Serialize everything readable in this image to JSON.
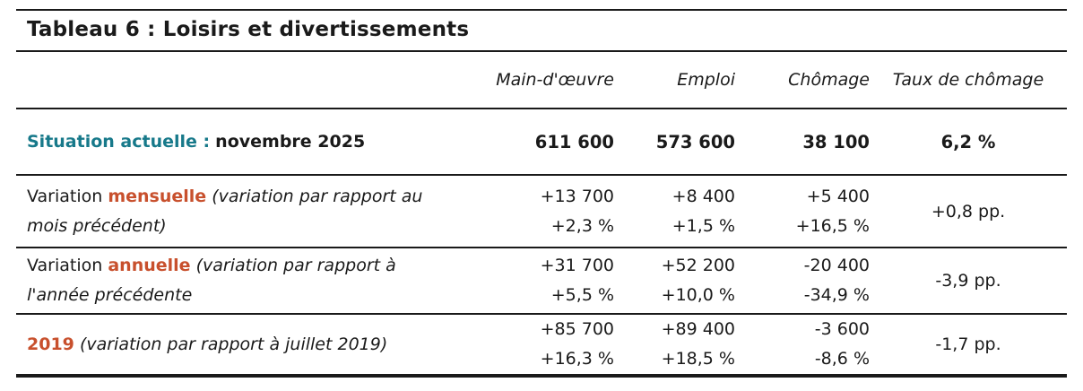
{
  "title": "Tableau 6 : Loisirs et divertissements",
  "colors": {
    "accent_teal": "#17798a",
    "accent_orange": "#c8502d",
    "text": "#1a1a1a",
    "rule": "#1a1a1a"
  },
  "header": {
    "columns": [
      "Main-d'œuvre",
      "Emploi",
      "Chômage",
      "Taux de chômage"
    ]
  },
  "rows": [
    {
      "label_accent": "Situation actuelle :",
      "label_rest": "novembre 2025",
      "values": [
        "611 600",
        "573 600",
        "38 100"
      ],
      "rate": "6,2 %"
    },
    {
      "label_lead": "Variation",
      "label_accent": "mensuelle",
      "label_note": "(variation par rapport au mois précédent)",
      "abs": [
        "+13 700",
        "+8 400",
        "+5 400"
      ],
      "pct": [
        "+2,3 %",
        "+1,5 %",
        "+16,5 %"
      ],
      "rate": "+0,8 pp."
    },
    {
      "label_lead": "Variation",
      "label_accent": "annuelle",
      "label_note": "(variation par rapport à l'année précédente",
      "abs": [
        "+31 700",
        "+52 200",
        "-20 400"
      ],
      "pct": [
        "+5,5 %",
        "+10,0 %",
        "-34,9 %"
      ],
      "rate": "-3,9 pp."
    },
    {
      "label_accent": "2019",
      "label_note": "(variation par rapport à juillet 2019)",
      "abs": [
        "+85 700",
        "+89 400",
        "-3 600"
      ],
      "pct": [
        "+16,3 %",
        "+18,5 %",
        "-8,6 %"
      ],
      "rate": "-1,7 pp."
    }
  ]
}
